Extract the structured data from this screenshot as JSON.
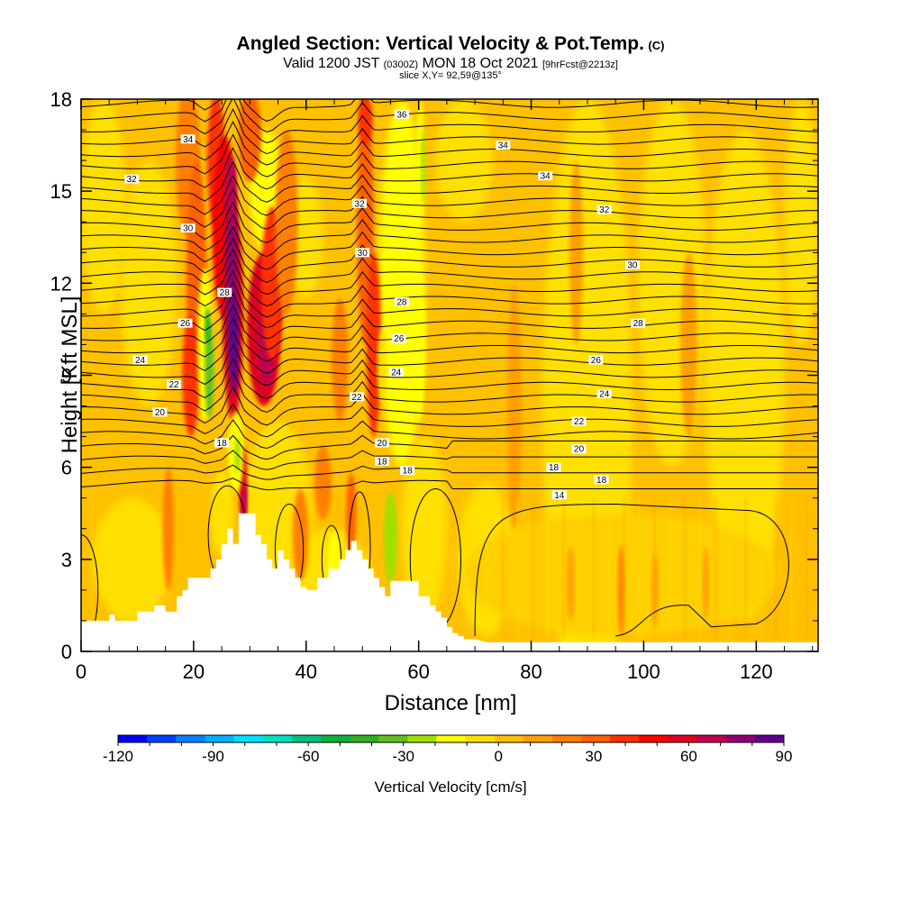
{
  "header": {
    "title": "Angled Section: Vertical Velocity & Pot.Temp.",
    "title_unit": "(C)",
    "valid_prefix": "Valid 1200 JST",
    "valid_utc": "(0300Z)",
    "valid_date": "MON 18 Oct 2021",
    "fcst": "[9hrFcst@2213z]",
    "slice": "slice X,Y= 92,59@135°"
  },
  "chart_data": {
    "type": "heatmap",
    "title": "Angled Section: Vertical Velocity & Pot.Temp.",
    "xlabel": "Distance [nm]",
    "ylabel": "Height [Kft MSL]",
    "xlim": [
      0,
      131
    ],
    "ylim": [
      0,
      18
    ],
    "grid": false,
    "x_ticks": [
      0,
      20,
      40,
      60,
      80,
      100,
      120
    ],
    "y_ticks": [
      0,
      3,
      6,
      9,
      12,
      15,
      18
    ],
    "colorbar": {
      "label": "Vertical Velocity [cm/s]",
      "min": -120,
      "max": 90,
      "step": 10,
      "tick_values": [
        -120,
        -90,
        -60,
        -30,
        0,
        30,
        60,
        90
      ],
      "colors": [
        "#0000ff",
        "#0040ff",
        "#0080ff",
        "#00b0ff",
        "#00e0ff",
        "#00e0c0",
        "#00c080",
        "#10b040",
        "#30b020",
        "#60c020",
        "#a0e000",
        "#ffff00",
        "#ffe000",
        "#ffc000",
        "#ffa000",
        "#ff8000",
        "#ff6000",
        "#ff3000",
        "#ff0000",
        "#e00020",
        "#c00050",
        "#900070",
        "#600090"
      ]
    },
    "isentrope_labels": [
      {
        "text": "36",
        "x": 57,
        "y": 17.5
      },
      {
        "text": "34",
        "x": 19,
        "y": 16.7
      },
      {
        "text": "34",
        "x": 75,
        "y": 16.5
      },
      {
        "text": "34",
        "x": 82.5,
        "y": 15.5
      },
      {
        "text": "32",
        "x": 9,
        "y": 15.4
      },
      {
        "text": "32",
        "x": 49.5,
        "y": 14.6
      },
      {
        "text": "32",
        "x": 93,
        "y": 14.4
      },
      {
        "text": "30",
        "x": 19,
        "y": 13.8
      },
      {
        "text": "30",
        "x": 50,
        "y": 13
      },
      {
        "text": "30",
        "x": 98,
        "y": 12.6
      },
      {
        "text": "28",
        "x": 25.5,
        "y": 11.7
      },
      {
        "text": "28",
        "x": 57,
        "y": 11.4
      },
      {
        "text": "28",
        "x": 99,
        "y": 10.7
      },
      {
        "text": "26",
        "x": 18.5,
        "y": 10.7
      },
      {
        "text": "26",
        "x": 56.5,
        "y": 10.2
      },
      {
        "text": "26",
        "x": 91.5,
        "y": 9.5
      },
      {
        "text": "24",
        "x": 10.5,
        "y": 9.5
      },
      {
        "text": "24",
        "x": 56,
        "y": 9.1
      },
      {
        "text": "24",
        "x": 93,
        "y": 8.4
      },
      {
        "text": "22",
        "x": 16.5,
        "y": 8.7
      },
      {
        "text": "22",
        "x": 49,
        "y": 8.3
      },
      {
        "text": "22",
        "x": 88.5,
        "y": 7.5
      },
      {
        "text": "20",
        "x": 14,
        "y": 7.8
      },
      {
        "text": "20",
        "x": 53.5,
        "y": 6.8
      },
      {
        "text": "20",
        "x": 88.5,
        "y": 6.6
      },
      {
        "text": "18",
        "x": 25,
        "y": 6.8
      },
      {
        "text": "18",
        "x": 53.5,
        "y": 6.2
      },
      {
        "text": "18",
        "x": 58,
        "y": 5.9
      },
      {
        "text": "18",
        "x": 84,
        "y": 6
      },
      {
        "text": "18",
        "x": 92.5,
        "y": 5.6
      },
      {
        "text": "14",
        "x": 85,
        "y": 5.1
      }
    ],
    "terrain": {
      "x": [
        0,
        5,
        5,
        6,
        6,
        10,
        10,
        13,
        13,
        15,
        15,
        17,
        17,
        18,
        18,
        19,
        19,
        20,
        20,
        23,
        23,
        24,
        24,
        25,
        25,
        26,
        26,
        27,
        27,
        28,
        28,
        28.5,
        28.5,
        31,
        31,
        32,
        32,
        33,
        33,
        34,
        34,
        35,
        35,
        36,
        36,
        37,
        37,
        38,
        38,
        39,
        39,
        40,
        40,
        41,
        41,
        42,
        42,
        44,
        44,
        46,
        46,
        47,
        47,
        48,
        48,
        49,
        49,
        50,
        50,
        51,
        51,
        52,
        52,
        53,
        53,
        54,
        54,
        55,
        55,
        57,
        57,
        60,
        60,
        62,
        62,
        63,
        63,
        64,
        64,
        65,
        65,
        66,
        66,
        67,
        67,
        68,
        68,
        70,
        70,
        72,
        72,
        131
      ],
      "y": [
        1,
        1,
        1.2,
        1.2,
        1,
        1,
        1.3,
        1.3,
        1.5,
        1.5,
        1.3,
        1.3,
        1.8,
        1.8,
        2,
        2,
        2.4,
        2.4,
        2.4,
        2.4,
        2.7,
        2.7,
        3,
        3,
        3.5,
        3.5,
        4,
        4,
        3.5,
        3.5,
        4.5,
        4.5,
        4.5,
        4.5,
        3.8,
        3.8,
        3.5,
        3.5,
        3,
        3,
        2.7,
        2.7,
        3.3,
        3.3,
        3.0,
        3.0,
        2.7,
        2.7,
        2.4,
        2.4,
        2.1,
        2.1,
        2,
        2,
        2,
        2,
        2.4,
        2.4,
        2.7,
        2.7,
        3.0,
        3.0,
        3.3,
        3.3,
        3.6,
        3.6,
        3.3,
        3.3,
        3,
        3,
        2.7,
        2.7,
        2.4,
        2.4,
        2.1,
        2.1,
        1.8,
        1.8,
        2.3,
        2.3,
        2.3,
        2.3,
        1.8,
        1.8,
        1.5,
        1.5,
        1.3,
        1.3,
        1.1,
        1.1,
        0.8,
        0.8,
        0.6,
        0.6,
        0.5,
        0.5,
        0.4,
        0.4,
        0.4,
        0.3,
        0.3,
        0.3
      ]
    }
  }
}
